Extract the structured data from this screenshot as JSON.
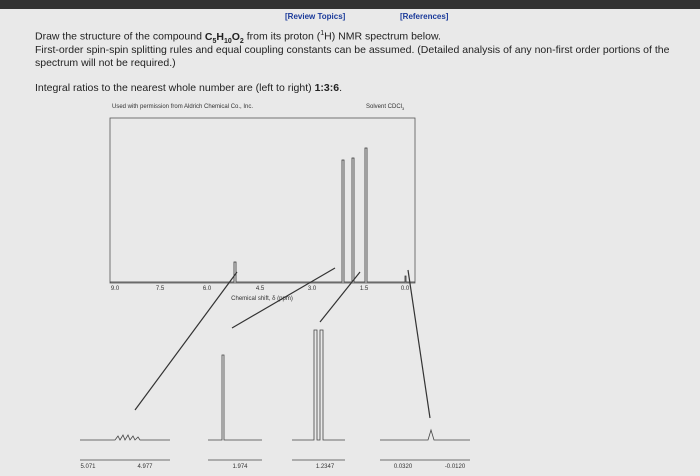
{
  "header": {
    "review_topics": "[Review Topics]",
    "references": "[References]"
  },
  "question": {
    "line1": [
      "Draw the structure of the compound ",
      "C",
      "5",
      "H",
      "10",
      "O",
      "2",
      " from its proton (",
      "1",
      "H) NMR spectrum below."
    ],
    "line2": "First-order spin-spin splitting rules and equal coupling constants can be assumed. (Detailed analysis of any non-first order portions of the spectrum will not be required.)",
    "line3": [
      "Integral ratios to the nearest whole number are (left to right) ",
      "1:3:6",
      "."
    ]
  },
  "spectrum": {
    "credit": "Used with permission from Aldrich Chemical Co., Inc.",
    "solvent": [
      "Solvent CDCl",
      "3"
    ],
    "axis_ticks": [
      "9.0",
      "7.5",
      "6.0",
      "4.5",
      "3.0",
      "1.5",
      "0.0"
    ],
    "axis_label": "Chemical shift, δ (ppm)",
    "insets": [
      [
        "5.071",
        "4.977"
      ],
      [
        "1.974"
      ],
      [
        "1.2347"
      ],
      [
        "0.0320",
        "-0.0120"
      ]
    ]
  }
}
